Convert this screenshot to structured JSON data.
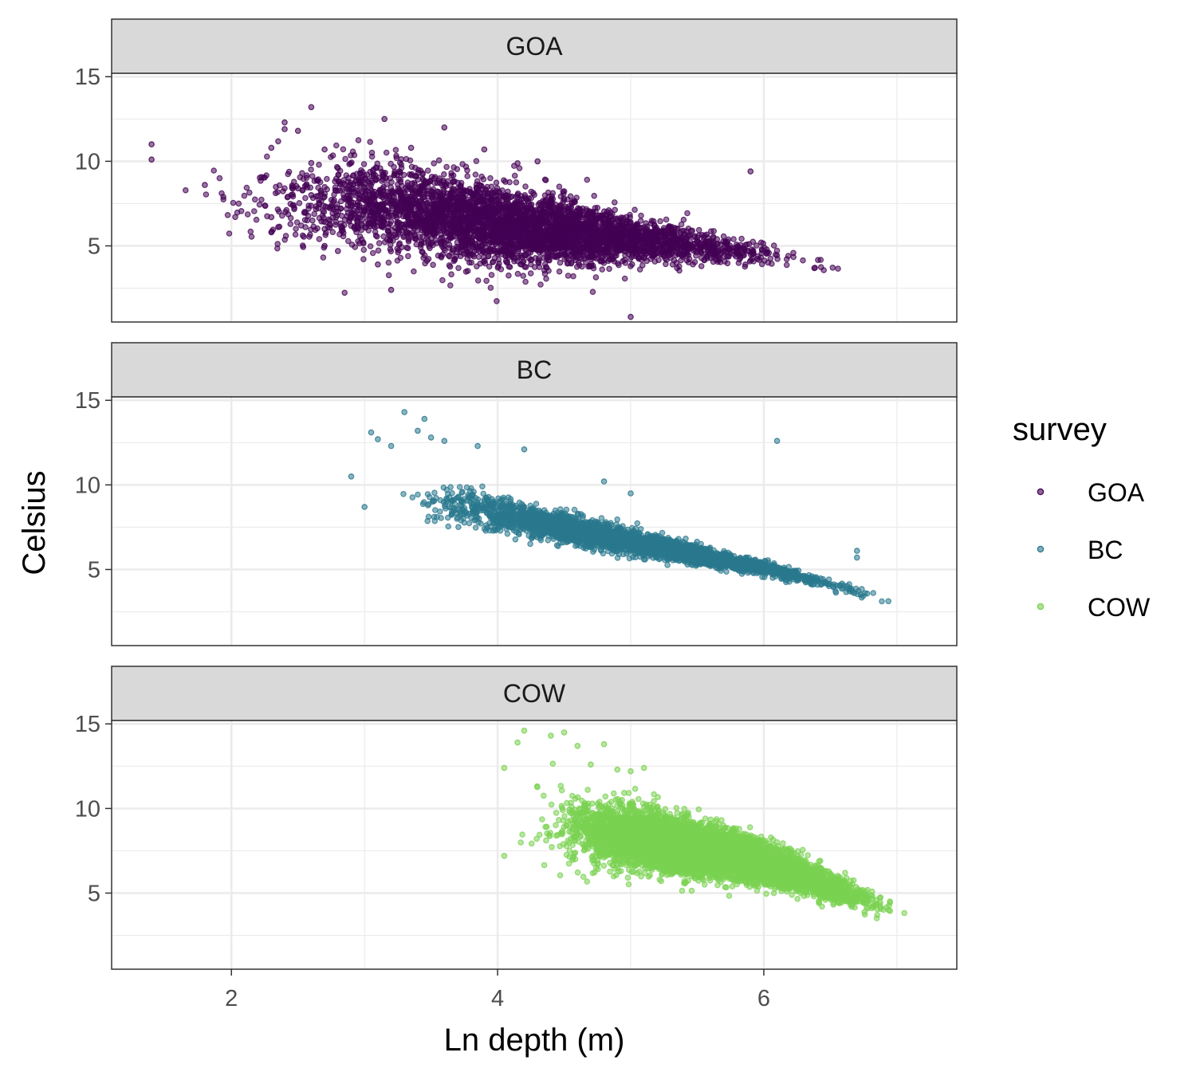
{
  "chart_data": {
    "type": "scatter",
    "xlabel": "Ln depth (m)",
    "ylabel": "Celsius",
    "xlim": [
      1.1,
      7.45
    ],
    "ylim": [
      0.5,
      15.2
    ],
    "x_ticks": [
      2,
      4,
      6
    ],
    "x_tick_labels": [
      "2",
      "4",
      "6"
    ],
    "y_ticks": [
      5,
      10,
      15
    ],
    "y_tick_labels": [
      "5",
      "10",
      "15"
    ],
    "grid": true,
    "facets": [
      "GOA",
      "BC",
      "COW"
    ],
    "legend": {
      "title": "survey",
      "position": "right",
      "entries": [
        "GOA",
        "BC",
        "COW"
      ]
    },
    "colors": {
      "GOA": "#440154",
      "BC": "#2a788e",
      "COW": "#7ad151"
    },
    "series": [
      {
        "name": "GOA",
        "x_range": [
          1.4,
          6.9
        ],
        "density_points": 4500,
        "notable_points": [
          [
            1.4,
            11.0
          ],
          [
            1.4,
            10.1
          ],
          [
            1.8,
            8.6
          ],
          [
            2.3,
            10.8
          ],
          [
            2.3,
            6.7
          ],
          [
            2.3,
            5.8
          ],
          [
            2.4,
            12.3
          ],
          [
            2.4,
            11.9
          ],
          [
            2.5,
            11.8
          ],
          [
            2.5,
            8.4
          ],
          [
            2.6,
            13.2
          ],
          [
            2.6,
            8.0
          ],
          [
            2.6,
            9.9
          ],
          [
            2.7,
            10.7
          ],
          [
            2.7,
            6.0
          ],
          [
            2.7,
            5.0
          ],
          [
            2.8,
            9.6
          ],
          [
            2.8,
            4.7
          ],
          [
            3.1,
            3.9
          ],
          [
            3.2,
            2.4
          ],
          [
            5.0,
            0.8
          ],
          [
            5.9,
            9.4
          ],
          [
            3.15,
            12.5
          ],
          [
            3.6,
            12.0
          ],
          [
            3.35,
            10.8
          ],
          [
            3.9,
            10.7
          ],
          [
            4.3,
            10.0
          ]
        ],
        "trend": [
          [
            3.0,
            7.5
          ],
          [
            4.0,
            6.2
          ],
          [
            5.0,
            5.4
          ],
          [
            6.0,
            4.6
          ],
          [
            6.9,
            3.0
          ]
        ],
        "spread": [
          [
            3.0,
            2.4
          ],
          [
            4.0,
            2.2
          ],
          [
            5.0,
            1.2
          ],
          [
            6.0,
            0.6
          ],
          [
            6.9,
            0.3
          ]
        ]
      },
      {
        "name": "BC",
        "x_range": [
          2.9,
          7.2
        ],
        "density_points": 3500,
        "notable_points": [
          [
            2.9,
            10.5
          ],
          [
            3.0,
            8.7
          ],
          [
            3.05,
            13.1
          ],
          [
            3.1,
            12.7
          ],
          [
            3.2,
            12.3
          ],
          [
            3.3,
            14.3
          ],
          [
            3.4,
            13.2
          ],
          [
            3.45,
            13.9
          ],
          [
            3.5,
            12.8
          ],
          [
            3.6,
            12.6
          ],
          [
            3.85,
            12.3
          ],
          [
            4.2,
            12.1
          ],
          [
            6.1,
            12.6
          ],
          [
            6.7,
            6.1
          ],
          [
            6.7,
            5.7
          ],
          [
            4.8,
            10.2
          ],
          [
            5.0,
            9.5
          ]
        ],
        "trend": [
          [
            3.0,
            10.0
          ],
          [
            4.0,
            8.3
          ],
          [
            5.0,
            6.6
          ],
          [
            6.0,
            5.1
          ],
          [
            7.2,
            2.7
          ]
        ],
        "spread": [
          [
            3.0,
            1.1
          ],
          [
            4.0,
            0.9
          ],
          [
            5.0,
            0.6
          ],
          [
            6.0,
            0.35
          ],
          [
            7.2,
            0.2
          ]
        ]
      },
      {
        "name": "COW",
        "x_range": [
          4.05,
          7.2
        ],
        "density_points": 9000,
        "notable_points": [
          [
            4.15,
            13.9
          ],
          [
            4.2,
            14.6
          ],
          [
            4.4,
            14.3
          ],
          [
            4.5,
            14.5
          ],
          [
            4.6,
            13.7
          ],
          [
            4.7,
            12.6
          ],
          [
            4.8,
            13.8
          ],
          [
            4.9,
            12.3
          ],
          [
            5.0,
            12.2
          ],
          [
            5.1,
            12.4
          ],
          [
            4.05,
            7.2
          ],
          [
            4.05,
            12.4
          ]
        ],
        "trend": [
          [
            4.05,
            9.3
          ],
          [
            5.0,
            8.4
          ],
          [
            6.0,
            6.8
          ],
          [
            7.2,
            3.4
          ]
        ],
        "spread": [
          [
            4.05,
            2.2
          ],
          [
            5.0,
            1.6
          ],
          [
            6.0,
            1.0
          ],
          [
            7.2,
            0.45
          ]
        ]
      }
    ]
  }
}
